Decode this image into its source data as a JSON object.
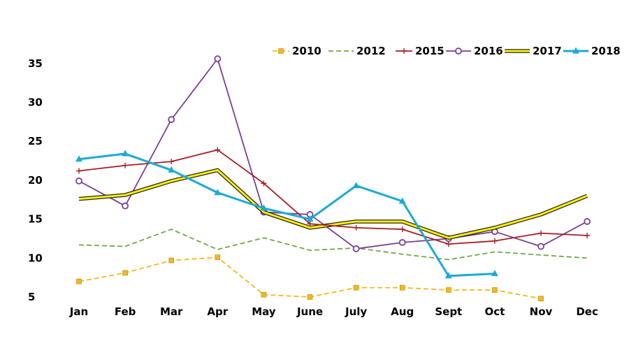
{
  "chart_data": {
    "type": "line",
    "title": "",
    "xlabel": "",
    "ylabel": "",
    "categories": [
      "Jan",
      "Feb",
      "Mar",
      "Apr",
      "May",
      "June",
      "July",
      "Aug",
      "Sept",
      "Oct",
      "Nov",
      "Dec"
    ],
    "ylim": [
      5,
      37
    ],
    "yticks": [
      5,
      10,
      15,
      20,
      25,
      30,
      35
    ],
    "grid": false,
    "legend": "top-right",
    "series": [
      {
        "name": "2010",
        "color": "#F2B822",
        "dash": "dashed",
        "marker": "square",
        "values": [
          7.0,
          8.1,
          9.7,
          10.1,
          5.3,
          5.0,
          6.2,
          6.2,
          5.9,
          5.9,
          4.8,
          null
        ]
      },
      {
        "name": "2012",
        "color": "#70A845",
        "dash": "dashed",
        "marker": "none",
        "values": [
          11.7,
          11.5,
          13.7,
          11.1,
          12.6,
          11.0,
          11.3,
          10.5,
          9.8,
          10.8,
          10.4,
          10.0
        ]
      },
      {
        "name": "2015",
        "color": "#A51E22",
        "dash": "solid",
        "marker": "plus",
        "values": [
          21.2,
          21.9,
          22.4,
          23.9,
          19.6,
          14.4,
          13.9,
          13.7,
          11.8,
          12.2,
          13.2,
          12.9
        ]
      },
      {
        "name": "2016",
        "color": "#7A3E96",
        "dash": "solid",
        "marker": "circle",
        "values": [
          19.9,
          16.7,
          27.8,
          35.6,
          15.9,
          15.6,
          11.2,
          12.0,
          12.5,
          13.4,
          11.5,
          14.7
        ]
      },
      {
        "name": "2017",
        "color": "#FFF200",
        "dash": "solid",
        "marker": "none",
        "outline": "#222222",
        "values": [
          17.6,
          18.1,
          19.9,
          21.3,
          15.9,
          13.9,
          14.7,
          14.7,
          12.6,
          13.9,
          15.6,
          18.0
        ]
      },
      {
        "name": "2018",
        "color": "#1CA9D8",
        "dash": "solid",
        "marker": "triangle",
        "values": [
          22.7,
          23.4,
          21.3,
          18.4,
          16.4,
          15.0,
          19.3,
          17.3,
          7.7,
          8.0,
          null,
          null
        ]
      }
    ]
  }
}
